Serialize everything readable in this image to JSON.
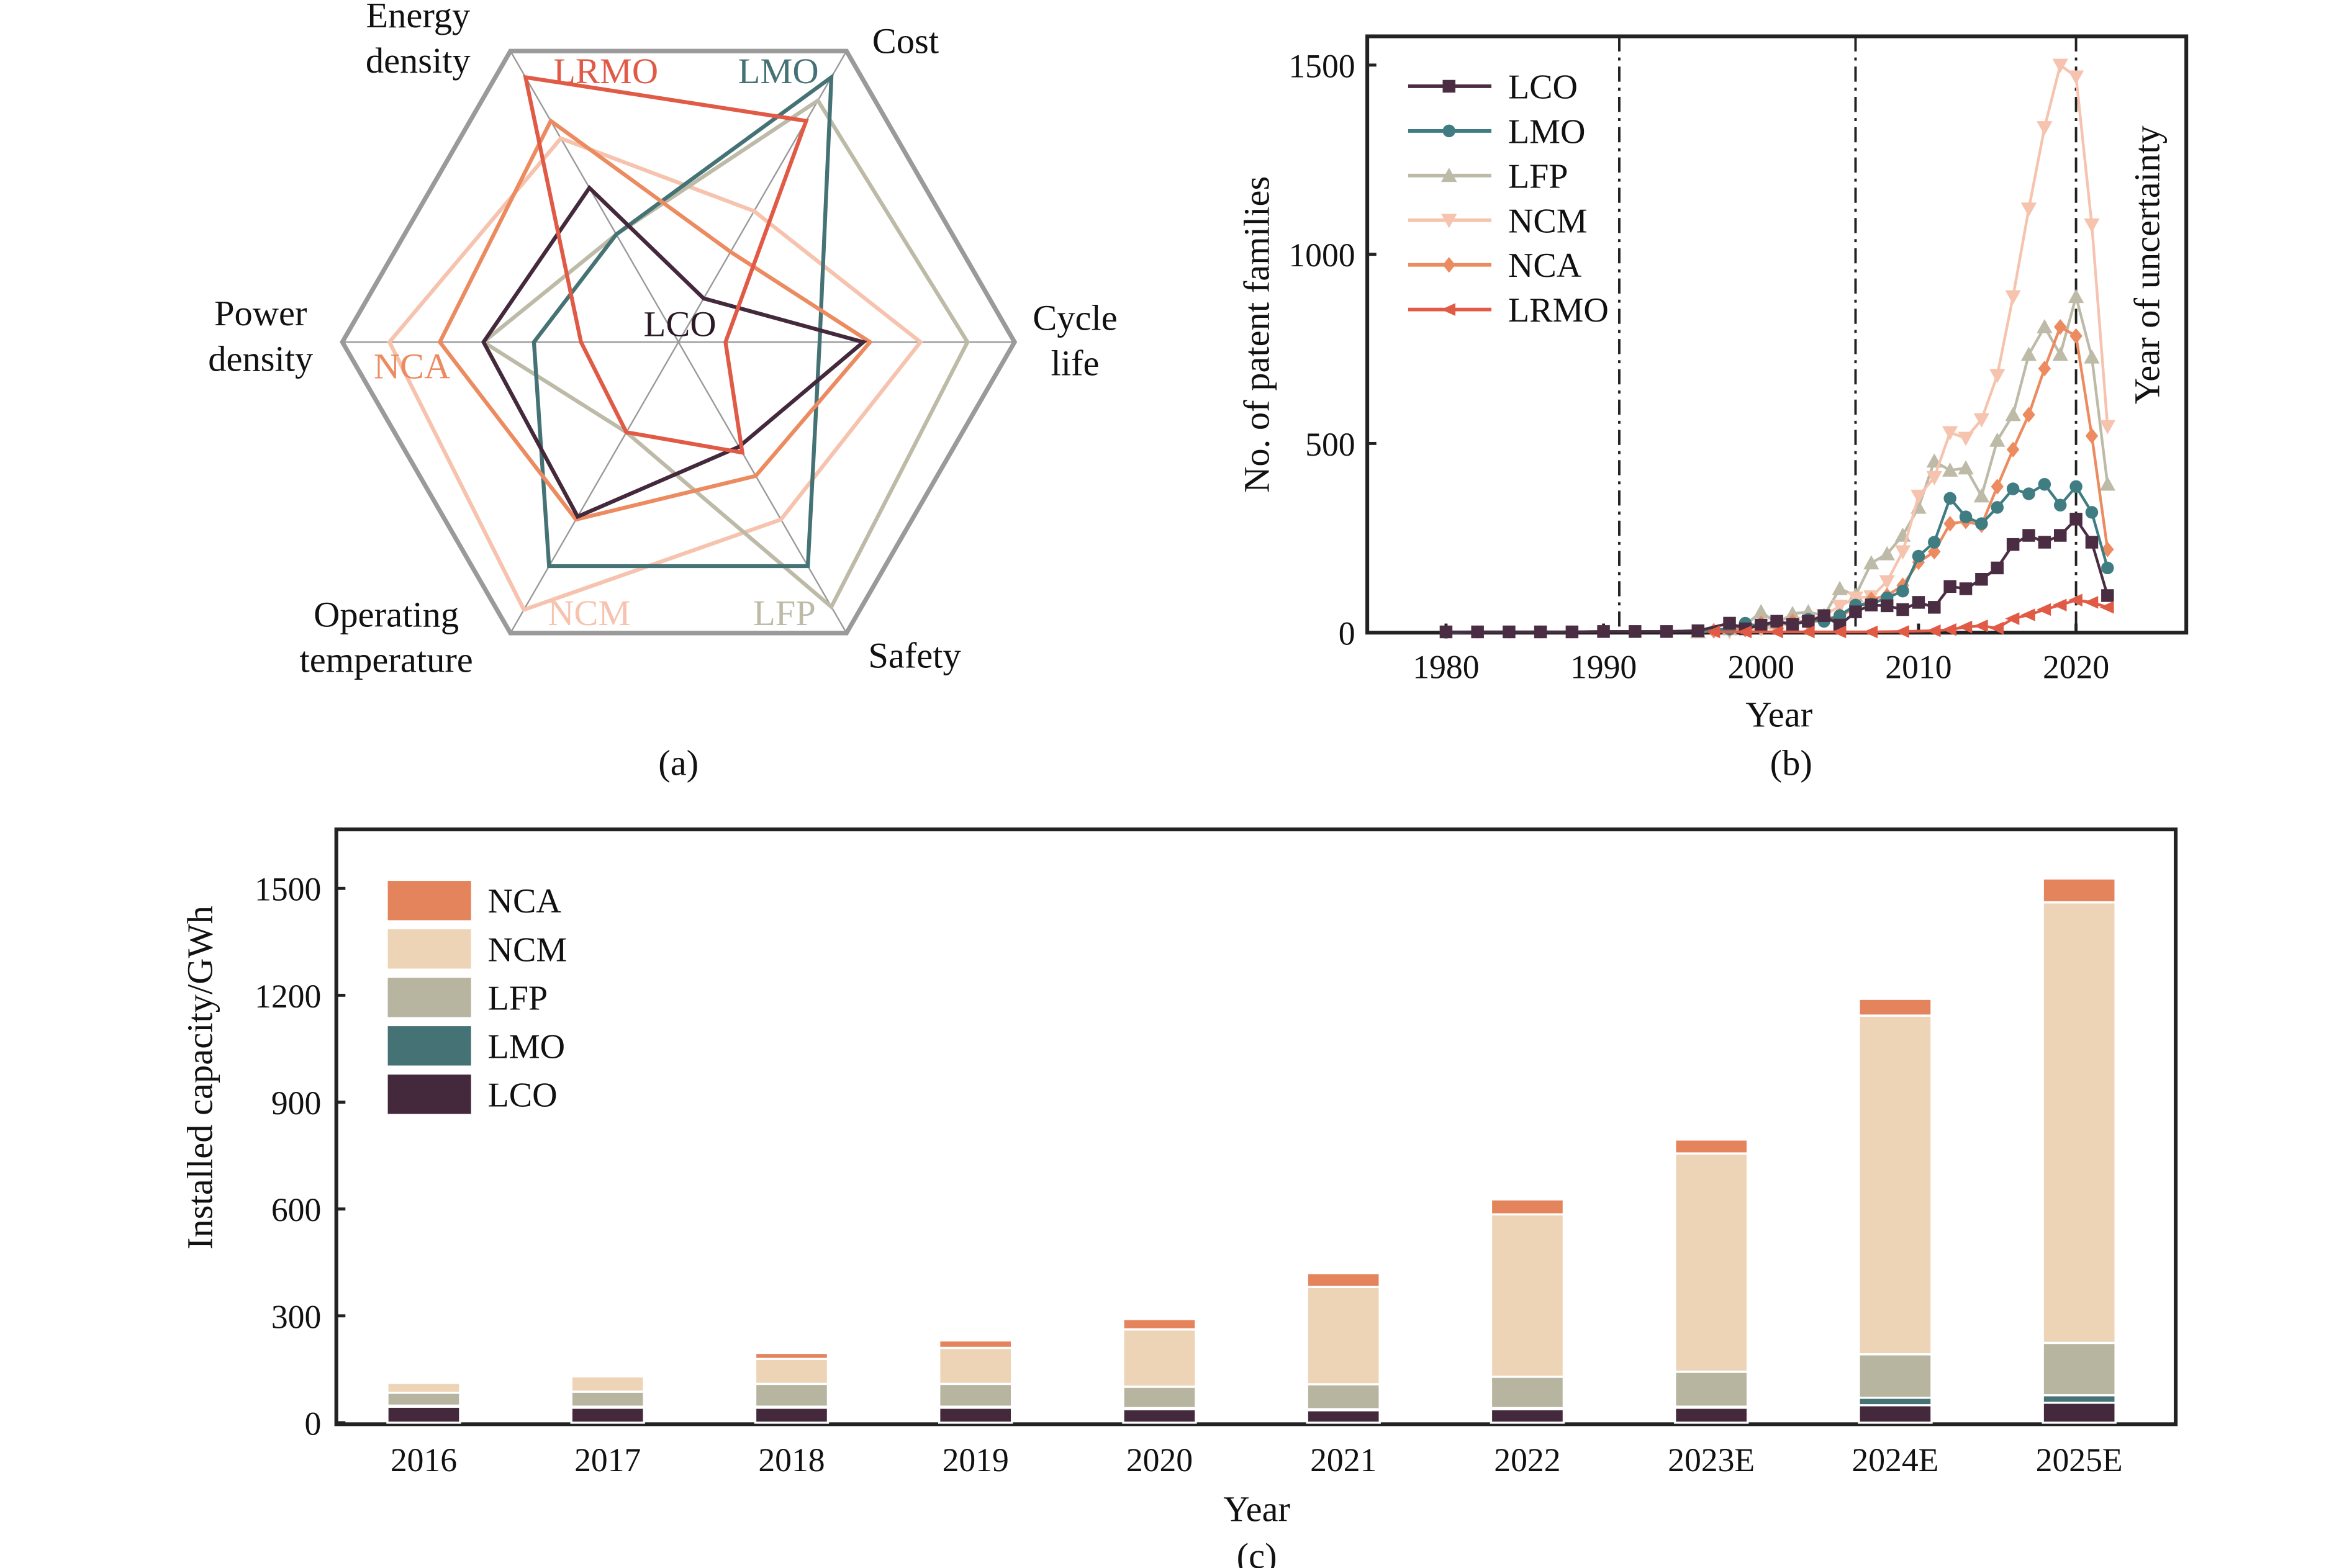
{
  "colors": {
    "LCO": "#43293B",
    "LMO": "#457275",
    "LFP": "#B7B5A0",
    "NCM": "#EED4B6",
    "NCA": "#E4845C",
    "LRMO": "#E05A45",
    "line_LCO": "#4A2D42",
    "line_LMO": "#3F7D82",
    "line_LFP": "#BDBBA7",
    "line_NCM": "#F6C3AE",
    "line_NCA": "#EC8A60",
    "line_LRMO": "#E05A45"
  },
  "chart_data": [
    {
      "panel_label": "(a)",
      "type": "radar",
      "axes": [
        "Energy density",
        "Cost",
        "Cycle life",
        "Safety",
        "Operating temperature",
        "Power density"
      ],
      "axis_label_lines": [
        [
          "Energy",
          "density"
        ],
        [
          "Cost"
        ],
        [
          "Cycle",
          "life"
        ],
        [
          "Safety"
        ],
        [
          "Operating",
          "temperature"
        ],
        [
          "Power",
          "density"
        ]
      ],
      "range": [
        0,
        1
      ],
      "grid": "hexagon",
      "series": [
        {
          "name": "LRMO",
          "values": [
            0.91,
            0.76,
            0.14,
            0.38,
            0.31,
            0.29
          ]
        },
        {
          "name": "LMO",
          "values": [
            0.37,
            0.91,
            0.42,
            0.77,
            0.77,
            0.43
          ]
        },
        {
          "name": "LFP",
          "values": [
            0.37,
            0.83,
            0.86,
            0.91,
            0.31,
            0.58
          ]
        },
        {
          "name": "NCM",
          "values": [
            0.7,
            0.45,
            0.72,
            0.61,
            0.92,
            0.86
          ]
        },
        {
          "name": "NCA",
          "values": [
            0.76,
            0.31,
            0.57,
            0.46,
            0.61,
            0.71
          ]
        },
        {
          "name": "LCO",
          "values": [
            0.53,
            0.15,
            0.55,
            0.36,
            0.6,
            0.58
          ]
        }
      ],
      "series_labels": [
        "LRMO",
        "LMO",
        "LFP",
        "NCM",
        "NCA",
        "LCO"
      ]
    },
    {
      "panel_label": "(b)",
      "type": "line",
      "title": "",
      "xlabel": "Year",
      "ylabel": "No. of patent families",
      "xlim": [
        1975,
        2027
      ],
      "ylim": [
        0,
        1500
      ],
      "xticks": [
        1980,
        1990,
        2000,
        2010,
        2020
      ],
      "yticks": [
        0,
        500,
        1000,
        1500
      ],
      "vlines": [
        1991,
        2006,
        2020
      ],
      "annotation": "Year of uncertainty",
      "legend": "top-left",
      "series": [
        {
          "name": "LCO",
          "marker": "square",
          "x": [
            1980,
            1982,
            1984,
            1986,
            1988,
            1990,
            1992,
            1994,
            1996,
            1998,
            1999,
            2000,
            2001,
            2002,
            2003,
            2004,
            2005,
            2006,
            2007,
            2008,
            2009,
            2010,
            2011,
            2012,
            2013,
            2014,
            2015,
            2016,
            2017,
            2018,
            2019,
            2020,
            2021,
            2022
          ],
          "y": [
            2,
            2,
            2,
            2,
            2,
            3,
            3,
            3,
            5,
            25,
            10,
            20,
            30,
            22,
            30,
            45,
            20,
            55,
            73,
            71,
            61,
            80,
            67,
            122,
            116,
            141,
            171,
            233,
            257,
            239,
            257,
            300,
            239,
            98
          ]
        },
        {
          "name": "LMO",
          "marker": "circle",
          "x": [
            1980,
            1982,
            1984,
            1986,
            1988,
            1990,
            1992,
            1994,
            1996,
            1998,
            1999,
            2000,
            2001,
            2002,
            2003,
            2004,
            2005,
            2006,
            2007,
            2008,
            2009,
            2010,
            2011,
            2012,
            2013,
            2014,
            2015,
            2016,
            2017,
            2018,
            2019,
            2020,
            2021,
            2022
          ],
          "y": [
            1,
            2,
            2,
            2,
            2,
            3,
            3,
            3,
            5,
            10,
            25,
            15,
            30,
            20,
            35,
            30,
            45,
            73,
            76,
            92,
            110,
            202,
            239,
            355,
            306,
            288,
            331,
            380,
            367,
            392,
            337,
            386,
            318,
            171
          ]
        },
        {
          "name": "LFP",
          "marker": "triangle-up",
          "x": [
            1996,
            1998,
            1999,
            2000,
            2001,
            2002,
            2003,
            2004,
            2005,
            2006,
            2007,
            2008,
            2009,
            2010,
            2011,
            2012,
            2013,
            2014,
            2015,
            2016,
            2017,
            2018,
            2019,
            2020,
            2021,
            2022
          ],
          "y": [
            2,
            10,
            20,
            55,
            25,
            50,
            55,
            45,
            116,
            98,
            184,
            208,
            257,
            331,
            453,
            429,
            435,
            361,
            508,
            576,
            735,
            808,
            735,
            888,
            728,
            392
          ]
        },
        {
          "name": "NCM",
          "marker": "triangle-down",
          "x": [
            1998,
            2000,
            2002,
            2004,
            2005,
            2006,
            2007,
            2008,
            2009,
            2010,
            2011,
            2012,
            2013,
            2014,
            2015,
            2016,
            2017,
            2018,
            2019,
            2020,
            2021,
            2022
          ],
          "y": [
            3,
            10,
            25,
            45,
            70,
            92,
            95,
            135,
            214,
            361,
            410,
            529,
            514,
            563,
            680,
            888,
            1120,
            1335,
            1500,
            1469,
            1078,
            545
          ]
        },
        {
          "name": "NCA",
          "marker": "diamond",
          "x": [
            1997,
            1998,
            1999,
            2000,
            2001,
            2002,
            2003,
            2004,
            2005,
            2006,
            2007,
            2008,
            2009,
            2010,
            2011,
            2012,
            2013,
            2014,
            2015,
            2016,
            2017,
            2018,
            2019,
            2020,
            2021,
            2022
          ],
          "y": [
            5,
            10,
            8,
            25,
            20,
            30,
            25,
            35,
            45,
            64,
            88,
            98,
            125,
            186,
            214,
            288,
            294,
            284,
            386,
            484,
            576,
            698,
            808,
            784,
            520,
            220
          ]
        },
        {
          "name": "LRMO",
          "marker": "triangle-left",
          "x": [
            1997,
            1999,
            2001,
            2003,
            2005,
            2007,
            2009,
            2011,
            2012,
            2013,
            2014,
            2015,
            2016,
            2017,
            2018,
            2019,
            2020,
            2021,
            2022
          ],
          "y": [
            2,
            2,
            2,
            2,
            2,
            2,
            3,
            5,
            8,
            15,
            18,
            12,
            37,
            47,
            61,
            73,
            86,
            80,
            67
          ]
        },
        {
          "name": "_legend_order",
          "order": [
            "LCO",
            "LMO",
            "LFP",
            "NCM",
            "NCA",
            "LRMO"
          ]
        }
      ]
    },
    {
      "panel_label": "(c)",
      "type": "bar",
      "stacked": true,
      "xlabel": "Year",
      "ylabel": "Installed capacity/GWh",
      "ylim": [
        0,
        1650
      ],
      "yticks": [
        0,
        300,
        600,
        900,
        1200,
        1500
      ],
      "legend": "top-left",
      "legend_order": [
        "NCA",
        "NCM",
        "LFP",
        "LMO",
        "LCO"
      ],
      "categories": [
        "2016",
        "2017",
        "2018",
        "2019",
        "2020",
        "2021",
        "2022",
        "2023E",
        "2024E",
        "2025E"
      ],
      "series": [
        {
          "name": "LCO",
          "values": [
            45,
            42,
            42,
            42,
            38,
            35,
            38,
            42,
            49,
            56
          ]
        },
        {
          "name": "LMO",
          "values": [
            3,
            3,
            3,
            3,
            3,
            3,
            3,
            3,
            21,
            21
          ]
        },
        {
          "name": "LFP",
          "values": [
            36,
            42,
            64,
            64,
            60,
            70,
            88,
            98,
            122,
            147
          ]
        },
        {
          "name": "NCM",
          "values": [
            28,
            43,
            70,
            101,
            161,
            273,
            456,
            613,
            951,
            1237
          ]
        },
        {
          "name": "NCA",
          "values": [
            3,
            4,
            17,
            21,
            29,
            39,
            42,
            39,
            47,
            67
          ]
        }
      ]
    }
  ]
}
